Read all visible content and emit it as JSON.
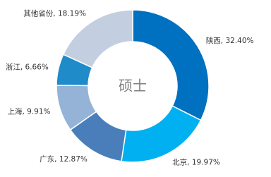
{
  "chart_data": {
    "type": "donut",
    "title": "硕士",
    "value_labels": [
      "陕西, 32.40%",
      "北京, 19.97%",
      "广东, 12.87%",
      "上海, 9.91%",
      "浙江, 6.66%",
      "其他省份, 18.19%"
    ],
    "values": [
      32.4,
      19.97,
      12.87,
      9.91,
      6.66,
      18.19
    ],
    "colors": [
      "#0070c0",
      "#00b0f0",
      "#4a7ebb",
      "#95b3d7",
      "#1f8bc8",
      "#c3cfe0"
    ]
  }
}
